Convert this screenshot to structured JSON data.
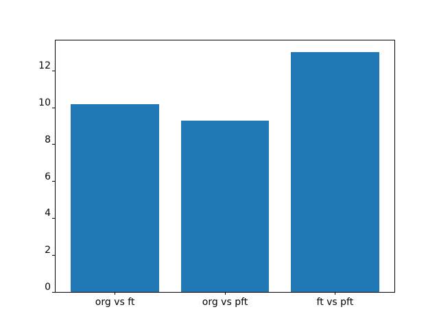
{
  "chart_data": {
    "type": "bar",
    "title": "",
    "xlabel": "",
    "ylabel": "",
    "categories": [
      "org vs ft",
      "org vs pft",
      "ft vs pft"
    ],
    "values": [
      10.2,
      9.3,
      13.0
    ],
    "yticks": [
      0,
      2,
      4,
      6,
      8,
      10,
      12
    ],
    "ylim": [
      0,
      13.65
    ],
    "bar_color": "#1f77b4",
    "spine_color": "#000000",
    "background_color": "#ffffff",
    "grid": false,
    "legend": null
  }
}
